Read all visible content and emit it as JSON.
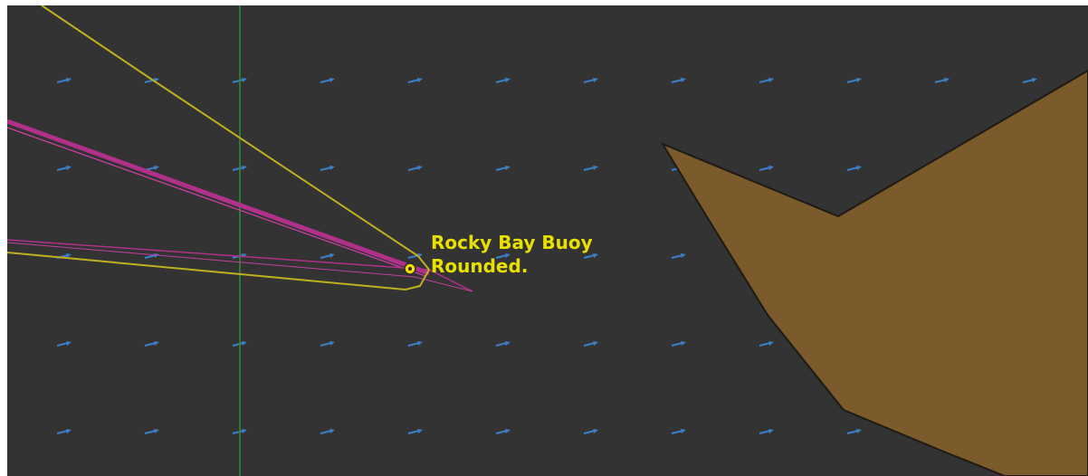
{
  "map": {
    "background_color": "#333333",
    "land_color": "#7b5a2c",
    "land_outline_color": "#1e1a14",
    "current_arrow_color": "#3a7fc8",
    "grid_line_color": "#2f8f2f",
    "track_color": "#c0b020",
    "laylines_color": "#b0308a",
    "current_arrow_icon": "current-arrow-icon"
  },
  "mark": {
    "name": "Rocky Bay Buoy",
    "status": "Rounded.",
    "color": "#f0e000",
    "icon": "buoy-icon"
  }
}
